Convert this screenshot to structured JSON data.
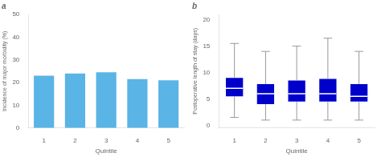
{
  "chart_data": [
    {
      "type": "bar",
      "title": "a",
      "categories": [
        "1",
        "2",
        "3",
        "4",
        "5"
      ],
      "values": [
        23.0,
        24.0,
        24.5,
        21.5,
        21.0
      ],
      "color": "#5ab4e5",
      "xlabel": "Quintile",
      "ylabel": "Incidence of major morbidity (%)",
      "ylim": [
        0,
        50
      ],
      "yticks": [
        0,
        10,
        20,
        30,
        40,
        50
      ],
      "grid": false
    },
    {
      "type": "box",
      "title": "b",
      "categories": [
        "1",
        "2",
        "3",
        "4",
        "5"
      ],
      "boxes": [
        {
          "q1": 5.5,
          "median": 7.0,
          "q3": 9.0,
          "whislo": 1.5,
          "whishi": 15.5
        },
        {
          "q1": 4.0,
          "median": 6.0,
          "q3": 7.8,
          "whislo": 1.0,
          "whishi": 14.0
        },
        {
          "q1": 4.5,
          "median": 6.0,
          "q3": 8.5,
          "whislo": 1.0,
          "whishi": 15.0
        },
        {
          "q1": 4.5,
          "median": 6.0,
          "q3": 8.8,
          "whislo": 1.0,
          "whishi": 16.5
        },
        {
          "q1": 4.5,
          "median": 5.5,
          "q3": 7.8,
          "whislo": 1.0,
          "whishi": 14.0
        }
      ],
      "color": "#0000cc",
      "xlabel": "Quintile",
      "ylabel": "Postoperative length of stay (days)",
      "ylim": [
        -0.5,
        21
      ],
      "yticks": [
        0,
        5,
        10,
        15,
        20
      ],
      "grid": false
    }
  ]
}
